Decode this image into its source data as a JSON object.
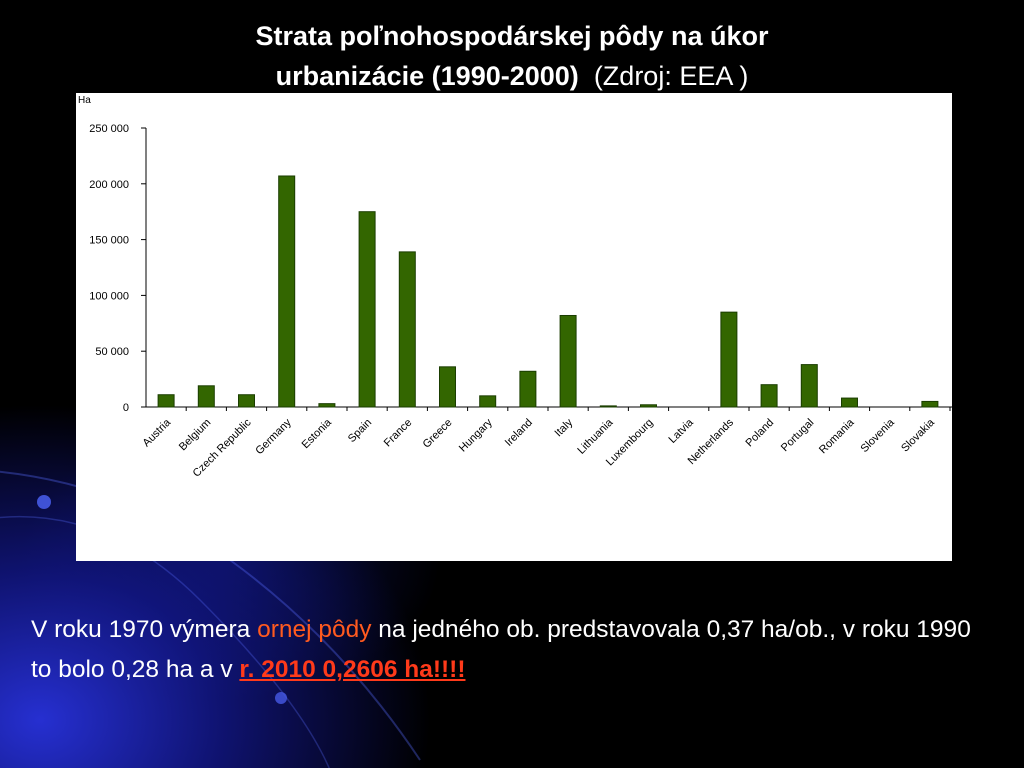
{
  "slide": {
    "title_line1": "Strata poľnohospodárskej pôdy na úkor",
    "title_line2": "urbanizácie (1990-2000)",
    "title_source": "(Zdroj: EEA )",
    "text_part1": "V roku 1970 výmera ",
    "text_highlight1": "ornej pôdy",
    "text_part2": " na jedného ob. predstavovala 0,37 ha/ob., v roku 1990 to bolo 0,28 ha a v ",
    "text_highlight2": "r. 2010  0,2606 ha!!!!",
    "colors": {
      "background": "#000000",
      "glow": "#2a32dc",
      "highlight1": "#ff5a1f",
      "highlight2": "#ff3a1a"
    }
  },
  "chart_data": {
    "type": "bar",
    "title": "",
    "ylabel": "Ha",
    "xlabel": "",
    "ylim": [
      0,
      250000
    ],
    "yticks": [
      0,
      50000,
      100000,
      150000,
      200000,
      250000
    ],
    "ytick_labels": [
      "0",
      "50 000",
      "100 000",
      "150 000",
      "200 000",
      "250 000"
    ],
    "categories": [
      "Austria",
      "Belgium",
      "Czech Republic",
      "Germany",
      "Estonia",
      "Spain",
      "France",
      "Greece",
      "Hungary",
      "Ireland",
      "Italy",
      "Lithuania",
      "Luxembourg",
      "Latvia",
      "Netherlands",
      "Poland",
      "Portugal",
      "Romania",
      "Slovenia",
      "Slovakia"
    ],
    "values": [
      11000,
      19000,
      11000,
      207000,
      3000,
      175000,
      139000,
      36000,
      10000,
      32000,
      82000,
      1000,
      2000,
      0,
      85000,
      20000,
      38000,
      8000,
      0,
      5000
    ],
    "bar_color": "#336600",
    "bar_edge_color": "#1a3d00",
    "grid": false,
    "legend": "none"
  }
}
